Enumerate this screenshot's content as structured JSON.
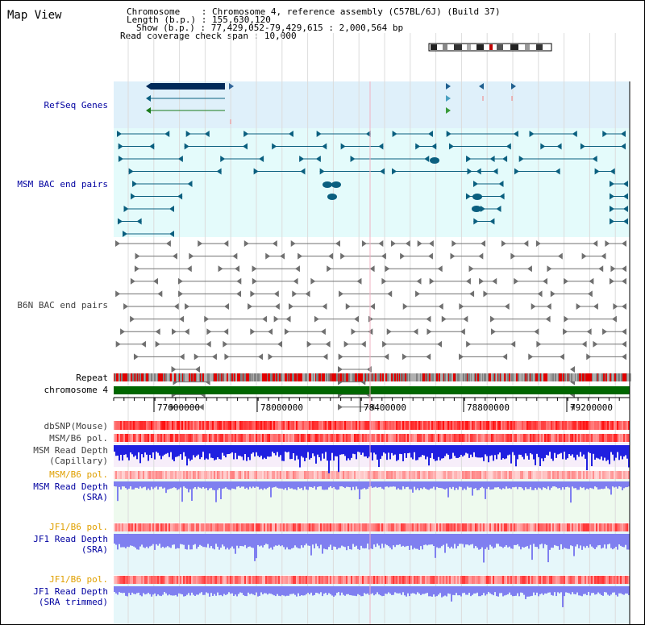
{
  "page": {
    "title": "Map View"
  },
  "info": {
    "chromosome_label": "Chromosome",
    "chromosome_value": "Chromosome 4, reference assembly (C57BL/6J) (Build 37)",
    "length_label": "Length (b.p.)",
    "length_value": "155,630,120",
    "show_label": "Show (b.p.)",
    "show_value": "77,429,052-79,429,615 : 2,000,564 bp",
    "coverage_label": "Read coverage check span",
    "coverage_value": "10,000"
  },
  "tracks": {
    "refseq": "RefSeq Genes",
    "msm_bac": "MSM BAC end pairs",
    "b6n_bac": "B6N BAC end pairs",
    "repeat": "Repeat",
    "chromosome": "chromosome 4",
    "dbsnp": "dbSNP(Mouse)",
    "msm_b6_pol_1": "MSM/B6 pol.",
    "msm_read_depth_cap_1": "MSM Read Depth",
    "msm_read_depth_cap_2": "(Capillary)",
    "msm_b6_pol_2": "MSM/B6 pol.",
    "msm_read_depth_sra_1": "MSM Read Depth",
    "msm_read_depth_sra_2": "(SRA)",
    "jf1_b6_pol_1": "JF1/B6 pol.",
    "jf1_read_depth_sra_1": "JF1 Read Depth",
    "jf1_read_depth_sra_2": "(SRA)",
    "jf1_b6_pol_2": "JF1/B6 pol.",
    "jf1_read_depth_trim_1": "JF1 Read Depth",
    "jf1_read_depth_trim_2": "(SRA trimmed)"
  },
  "ruler": {
    "ticks": [
      "77600000",
      "78000000",
      "78400000",
      "78800000",
      "79200000"
    ]
  },
  "colors": {
    "refseq_bg": "#dff0fa",
    "msm_bg": "#e4fbfb",
    "b6n_bg": "#ffffff",
    "msm_feature": "#0a5f7f",
    "b6n_feature": "#707070",
    "gene_dark": "#002a5a",
    "repeat_red": "#e00000",
    "chrom_green": "#006600",
    "depth_blue": "#2020e0",
    "depth_light": "#7f7ff0"
  },
  "icons": {
    "ideogram": "chromosome-ideogram"
  }
}
